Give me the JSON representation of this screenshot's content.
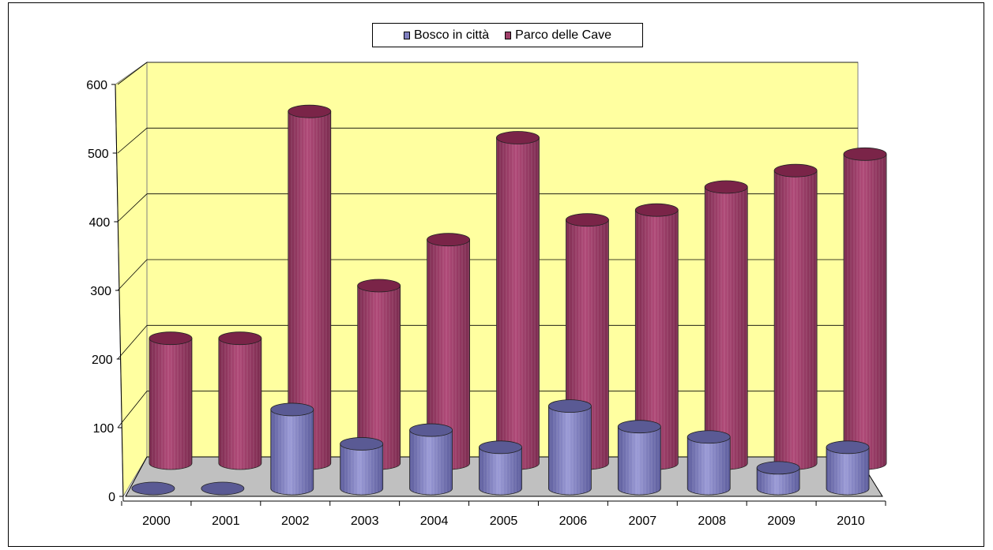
{
  "chart_data": {
    "type": "bar",
    "categories": [
      "2000",
      "2001",
      "2002",
      "2003",
      "2004",
      "2005",
      "2006",
      "2007",
      "2008",
      "2009",
      "2010"
    ],
    "series": [
      {
        "name": "Bosco in città",
        "values": [
          0,
          0,
          115,
          65,
          85,
          60,
          120,
          90,
          75,
          30,
          60
        ]
      },
      {
        "name": "Parco delle Cave",
        "values": [
          190,
          190,
          535,
          270,
          340,
          495,
          370,
          385,
          420,
          445,
          470
        ]
      }
    ],
    "yticks": [
      "0",
      "100",
      "200",
      "300",
      "400",
      "500",
      "600"
    ],
    "ylim": [
      0,
      600
    ],
    "legend_position": "top",
    "grid": true,
    "colors": {
      "Bosco in città": "#8080c0",
      "Parco delle Cave": "#a0406a",
      "back_wall": "#ffffa0",
      "floor": "#c0c0c0"
    }
  }
}
